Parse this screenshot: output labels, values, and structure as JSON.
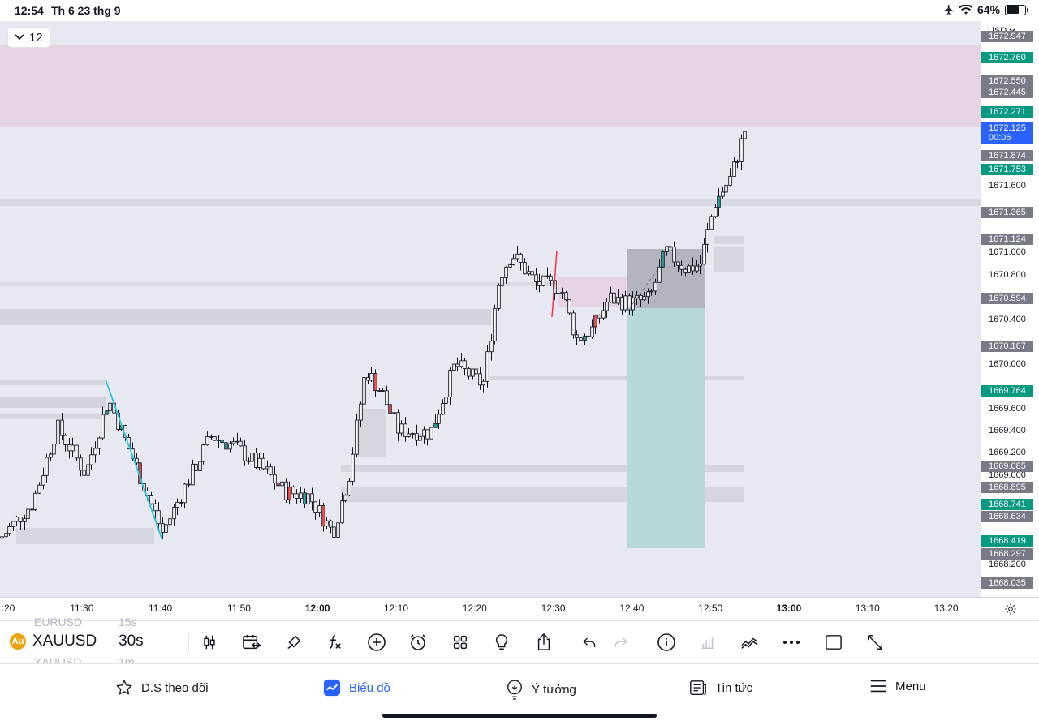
{
  "status_bar": {
    "time": "12:54",
    "date": "Th 6 23 thg 9",
    "battery": "64%"
  },
  "chart": {
    "interval_button": "12",
    "currency": "USD",
    "colors": {
      "up": "#26a69a",
      "down": "#ef5350",
      "candle_body": "#ffffff",
      "candle_border": "#131722",
      "current_price": "#2962ff"
    },
    "price_range": [
      1667.95,
      1673.05
    ],
    "price_ticks": [
      "1671.600",
      "1671.000",
      "1670.800",
      "1670.400",
      "1670.000",
      "1669.600",
      "1669.400",
      "1669.200",
      "1669.000",
      "1668.200"
    ],
    "price_tags": [
      {
        "price": 1672.947,
        "label": "1672.947",
        "kind": "gray"
      },
      {
        "price": 1672.76,
        "label": "1672.760",
        "kind": "green"
      },
      {
        "price": 1672.55,
        "label": "1672.550",
        "kind": "gray"
      },
      {
        "price": 1672.445,
        "label": "1672.445",
        "kind": "gray"
      },
      {
        "price": 1672.271,
        "label": "1672.271",
        "kind": "green"
      },
      {
        "price": 1672.125,
        "label": "1672.125",
        "sub": "00:06",
        "kind": "blue"
      },
      {
        "price": 1671.874,
        "label": "1671.874",
        "kind": "gray"
      },
      {
        "price": 1671.753,
        "label": "1671.753",
        "kind": "green"
      },
      {
        "price": 1671.365,
        "label": "1671.365",
        "kind": "gray"
      },
      {
        "price": 1671.124,
        "label": "1671.124",
        "kind": "gray"
      },
      {
        "price": 1670.594,
        "label": "1670.594",
        "kind": "gray"
      },
      {
        "price": 1670.167,
        "label": "1670.167",
        "kind": "gray"
      },
      {
        "price": 1669.764,
        "label": "1669.764",
        "kind": "green"
      },
      {
        "price": 1669.085,
        "label": "1669.085",
        "kind": "gray"
      },
      {
        "price": 1668.895,
        "label": "1668.895",
        "kind": "gray"
      },
      {
        "price": 1668.741,
        "label": "1668.741",
        "kind": "green"
      },
      {
        "price": 1668.634,
        "label": "1668.634",
        "kind": "gray"
      },
      {
        "price": 1668.419,
        "label": "1668.419",
        "kind": "green"
      },
      {
        "price": 1668.297,
        "label": "1668.297",
        "kind": "gray"
      },
      {
        "price": 1668.035,
        "label": "1668.035",
        "kind": "gray"
      }
    ],
    "time_ticks": [
      {
        "label": ":20",
        "bold": false
      },
      {
        "label": "11:30",
        "bold": false
      },
      {
        "label": "11:40",
        "bold": false
      },
      {
        "label": "11:50",
        "bold": false
      },
      {
        "label": "12:00",
        "bold": true
      },
      {
        "label": "12:10",
        "bold": false
      },
      {
        "label": "12:20",
        "bold": false
      },
      {
        "label": "12:30",
        "bold": false
      },
      {
        "label": "12:40",
        "bold": false
      },
      {
        "label": "12:50",
        "bold": false
      },
      {
        "label": "13:00",
        "bold": true
      },
      {
        "label": "13:10",
        "bold": false
      },
      {
        "label": "13:20",
        "bold": false
      }
    ]
  },
  "toolbar": {
    "symbol": "XAUUSD",
    "interval": "30s",
    "ghost_symbol_above": "EURUSD",
    "ghost_interval_above": "15s",
    "ghost_symbol_below": "XAUUSD",
    "ghost_interval_below": "1m",
    "icons": [
      "candle-type-icon",
      "date-range-icon",
      "drawing-pen-icon",
      "indicators-fx-icon",
      "add-circle-icon",
      "alarm-clock-icon",
      "layout-grid-icon",
      "ideas-lightbulb-icon",
      "share-icon",
      "undo-icon",
      "redo-icon",
      "info-icon",
      "bar-chart-icon",
      "compare-icon",
      "more-icon",
      "fullscreen-square-icon",
      "expand-arrows-icon"
    ]
  },
  "tabs": [
    {
      "label": "D.S theo dõi",
      "icon": "star-icon",
      "active": false
    },
    {
      "label": "Biểu đồ",
      "icon": "chart-icon",
      "active": true
    },
    {
      "label": "Ý tưởng",
      "icon": "lightbulb-icon",
      "active": false
    },
    {
      "label": "Tin tức",
      "icon": "news-icon",
      "active": false
    },
    {
      "label": "Menu",
      "icon": "hamburger-icon",
      "active": false
    }
  ]
}
